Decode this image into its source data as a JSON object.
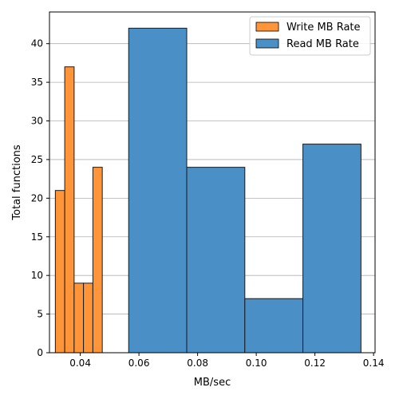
{
  "chart_data": {
    "type": "histogram",
    "xlabel": "MB/sec",
    "ylabel": "Total functions",
    "xlim": [
      0.0295,
      0.1405
    ],
    "ylim": [
      0,
      44.1
    ],
    "xticks": [
      0.04,
      0.06,
      0.08,
      0.1,
      0.12,
      0.14
    ],
    "xtick_labels": [
      "0.04",
      "0.06",
      "0.08",
      "0.10",
      "0.12",
      "0.14"
    ],
    "yticks": [
      0,
      5,
      10,
      15,
      20,
      25,
      30,
      35,
      40
    ],
    "ytick_labels": [
      "0",
      "5",
      "10",
      "15",
      "20",
      "25",
      "30",
      "35",
      "40"
    ],
    "grid": "y",
    "legend": "top-right",
    "series": [
      {
        "name": "Write MB Rate",
        "color": "#ff9538",
        "bins": [
          {
            "x0": 0.0315,
            "x1": 0.0347,
            "value": 21
          },
          {
            "x0": 0.0347,
            "x1": 0.0379,
            "value": 37
          },
          {
            "x0": 0.0379,
            "x1": 0.0411,
            "value": 9
          },
          {
            "x0": 0.0411,
            "x1": 0.0443,
            "value": 9
          },
          {
            "x0": 0.0443,
            "x1": 0.0475,
            "value": 24
          }
        ]
      },
      {
        "name": "Read MB Rate",
        "color": "#4a90c6",
        "bins": [
          {
            "x0": 0.0565,
            "x1": 0.0763,
            "value": 42
          },
          {
            "x0": 0.0763,
            "x1": 0.0961,
            "value": 24
          },
          {
            "x0": 0.0961,
            "x1": 0.1159,
            "value": 7
          },
          {
            "x0": 0.1159,
            "x1": 0.1357,
            "value": 27
          }
        ]
      }
    ]
  }
}
